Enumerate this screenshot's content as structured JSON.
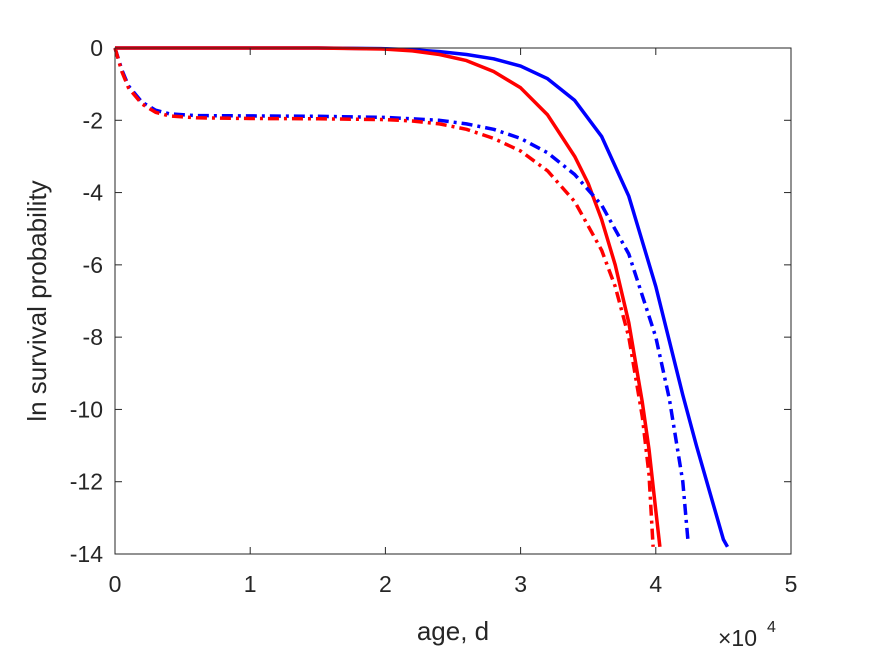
{
  "chart_data": {
    "type": "line",
    "xlabel": "age, d",
    "ylabel": "ln survival probability",
    "x_exponent_base": "×10",
    "x_exponent_power": "4",
    "xlim": [
      0,
      50000
    ],
    "ylim": [
      -14,
      0
    ],
    "xticks": [
      0,
      10000,
      20000,
      30000,
      40000,
      50000
    ],
    "xtick_labels": [
      "0",
      "1",
      "2",
      "3",
      "4",
      "5"
    ],
    "yticks": [
      0,
      -2,
      -4,
      -6,
      -8,
      -10,
      -12,
      -14
    ],
    "ytick_labels": [
      "0",
      "-2",
      "-4",
      "-6",
      "-8",
      "-10",
      "-12",
      "-14"
    ],
    "grid": false,
    "series": [
      {
        "color": "#0000ff",
        "style": "solid",
        "x": [
          0,
          5000,
          10000,
          15000,
          20000,
          22000,
          24000,
          26000,
          28000,
          30000,
          32000,
          34000,
          36000,
          38000,
          40000,
          42000,
          43000,
          44000,
          45000,
          45300
        ],
        "y": [
          0,
          0,
          0,
          0,
          -0.02,
          -0.05,
          -0.1,
          -0.18,
          -0.3,
          -0.5,
          -0.85,
          -1.45,
          -2.45,
          -4.1,
          -6.6,
          -9.6,
          -11.0,
          -12.3,
          -13.6,
          -13.8
        ]
      },
      {
        "color": "#ff0000",
        "style": "solid",
        "x": [
          0,
          5000,
          10000,
          15000,
          20000,
          22000,
          24000,
          26000,
          28000,
          30000,
          32000,
          34000,
          35000,
          36000,
          37000,
          38000,
          39000,
          39500,
          40000,
          40300
        ],
        "y": [
          0,
          0,
          0,
          0,
          -0.03,
          -0.08,
          -0.18,
          -0.35,
          -0.65,
          -1.1,
          -1.85,
          -3.0,
          -3.75,
          -4.75,
          -6.0,
          -7.6,
          -9.8,
          -11.1,
          -12.8,
          -13.8
        ]
      },
      {
        "color": "#0000ff",
        "style": "dashdot",
        "x": [
          0,
          500,
          1000,
          2000,
          3000,
          4000,
          6000,
          10000,
          15000,
          20000,
          24000,
          26000,
          28000,
          30000,
          32000,
          34000,
          36000,
          38000,
          40000,
          41000,
          42000,
          42400
        ],
        "y": [
          0,
          -0.6,
          -1.05,
          -1.5,
          -1.72,
          -1.82,
          -1.87,
          -1.88,
          -1.89,
          -1.92,
          -2.0,
          -2.1,
          -2.25,
          -2.5,
          -2.9,
          -3.5,
          -4.35,
          -5.7,
          -8.0,
          -9.7,
          -12.0,
          -13.7
        ]
      },
      {
        "color": "#ff0000",
        "style": "dashdot",
        "x": [
          0,
          500,
          1000,
          2000,
          3000,
          4000,
          6000,
          10000,
          15000,
          20000,
          22000,
          24000,
          26000,
          28000,
          30000,
          32000,
          34000,
          36000,
          37000,
          38000,
          39000,
          39500,
          39800
        ],
        "y": [
          0,
          -0.65,
          -1.1,
          -1.55,
          -1.78,
          -1.88,
          -1.93,
          -1.95,
          -1.96,
          -1.98,
          -2.02,
          -2.1,
          -2.25,
          -2.5,
          -2.85,
          -3.4,
          -4.25,
          -5.6,
          -6.6,
          -8.0,
          -10.2,
          -11.8,
          -13.8
        ]
      }
    ]
  }
}
